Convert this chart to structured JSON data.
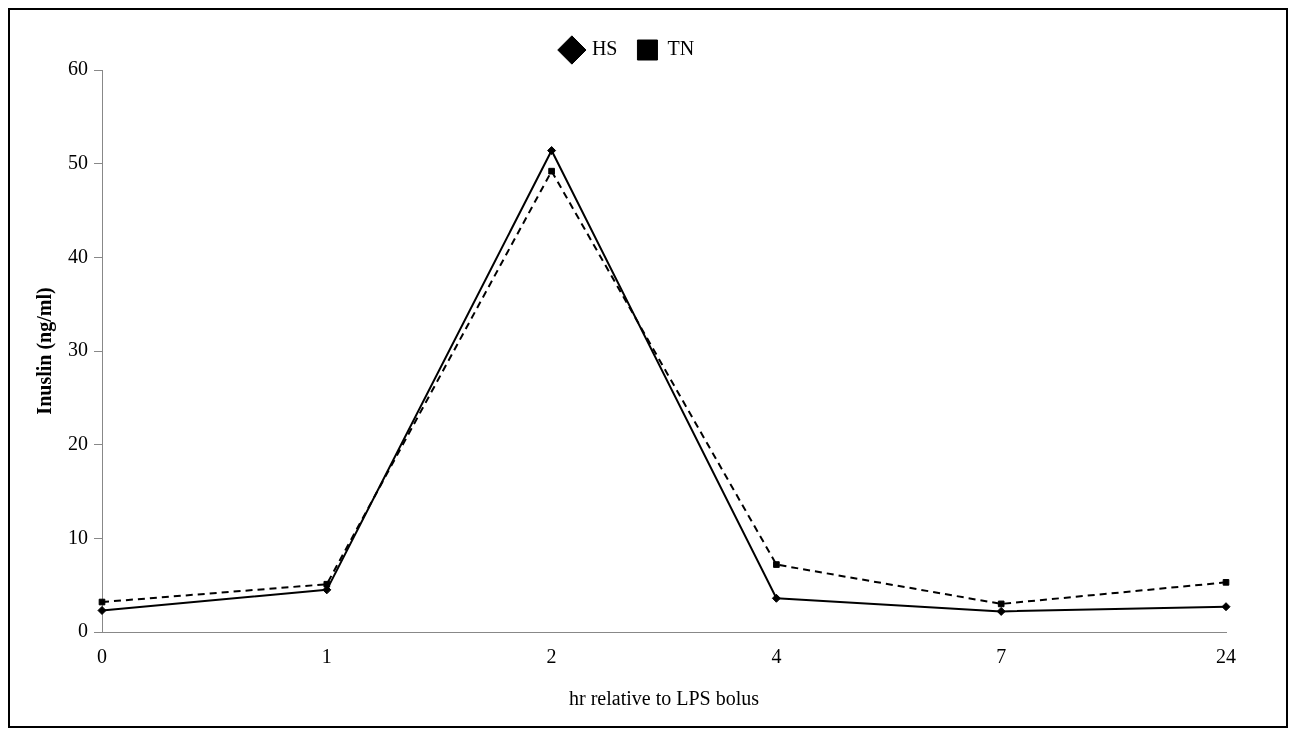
{
  "chart_data": {
    "type": "line",
    "xlabel": "hr relative to LPS bolus",
    "ylabel": "Inuslin (ng/ml)",
    "categories": [
      "0",
      "1",
      "2",
      "4",
      "7",
      "24"
    ],
    "series": [
      {
        "name": "HS",
        "color": "#000000",
        "marker": "diamond",
        "line_style": "solid",
        "values": [
          2.3,
          4.5,
          51.4,
          3.6,
          2.2,
          2.7
        ]
      },
      {
        "name": "TN",
        "color": "#000000",
        "marker": "square",
        "line_style": "dashed",
        "values": [
          3.2,
          5.1,
          49.2,
          7.2,
          3.0,
          5.3
        ]
      }
    ],
    "ylim": [
      0,
      60
    ],
    "yticks": [
      0,
      10,
      20,
      30,
      40,
      50,
      60
    ],
    "grid": false,
    "legend": "top"
  }
}
